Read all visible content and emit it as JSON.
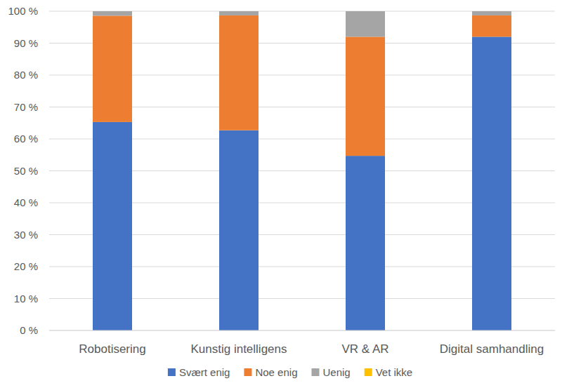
{
  "chart_data": {
    "type": "bar",
    "stacked": true,
    "grid": true,
    "legend": "bottom",
    "categories": [
      "Robotisering",
      "Kunstig intelligens",
      "VR & AR",
      "Digital samhandling"
    ],
    "series": [
      {
        "name": "Svært enig",
        "color": "#4472c4",
        "values": [
          65.3,
          62.7,
          54.7,
          92
        ]
      },
      {
        "name": "Noe enig",
        "color": "#ed7d31",
        "values": [
          33.3,
          36,
          37.3,
          6.7
        ]
      },
      {
        "name": "Uenig",
        "color": "#a5a5a5",
        "values": [
          1.4,
          1.3,
          8,
          1.3
        ]
      },
      {
        "name": "Vet ikke",
        "color": "#ffc000",
        "values": [
          0,
          0,
          0,
          0
        ]
      }
    ],
    "ylim": [
      0,
      100
    ],
    "yticks": [
      {
        "value": 0,
        "label": "0 %"
      },
      {
        "value": 10,
        "label": "10 %"
      },
      {
        "value": 20,
        "label": "20 %"
      },
      {
        "value": 30,
        "label": "30 %"
      },
      {
        "value": 40,
        "label": "40 %"
      },
      {
        "value": 50,
        "label": "50 %"
      },
      {
        "value": 60,
        "label": "60 %"
      },
      {
        "value": 70,
        "label": "70 %"
      },
      {
        "value": 80,
        "label": "80 %"
      },
      {
        "value": 90,
        "label": "90 %"
      },
      {
        "value": 100,
        "label": "100 %"
      }
    ]
  }
}
